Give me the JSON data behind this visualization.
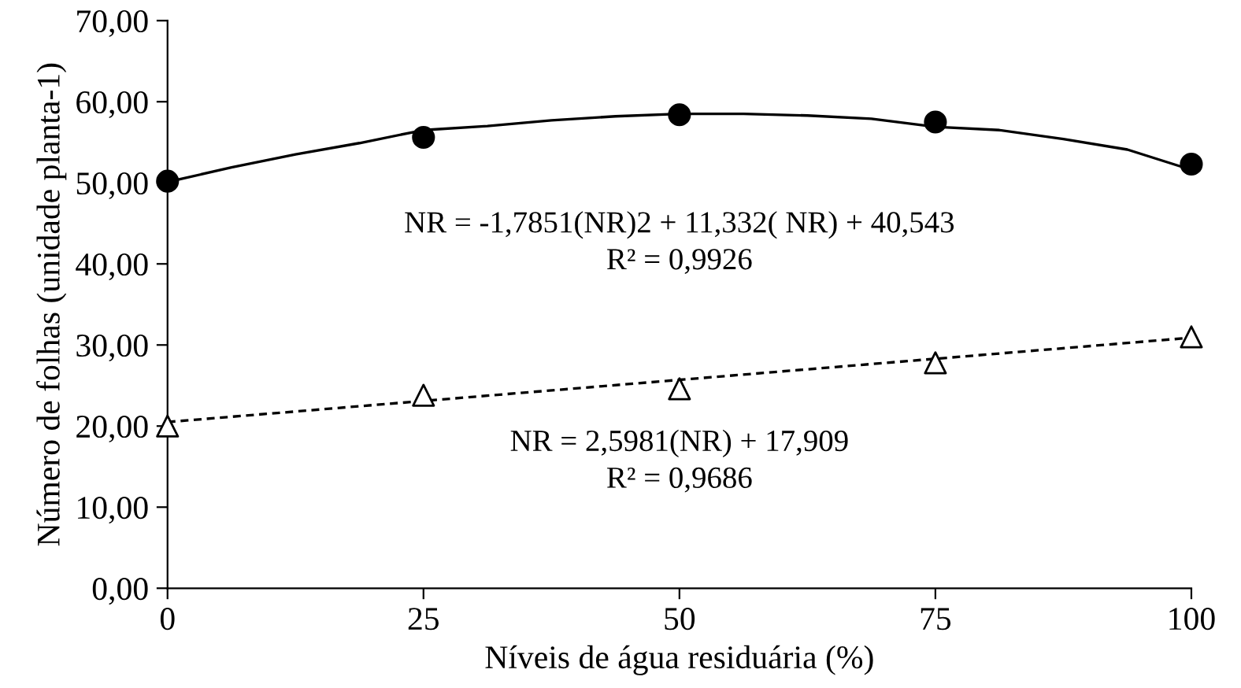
{
  "chart_data": {
    "type": "scatter",
    "xlabel": "Níveis de água residuária (%)",
    "ylabel": "Número de folhas (unidade planta-1)",
    "xlim": [
      0,
      100
    ],
    "xticks": [
      0,
      25,
      50,
      75,
      100
    ],
    "ylim": [
      0,
      70
    ],
    "yticks": [
      {
        "value": 0,
        "label": "0,00"
      },
      {
        "value": 10,
        "label": "10,00"
      },
      {
        "value": 20,
        "label": "20,00"
      },
      {
        "value": 30,
        "label": "30,00"
      },
      {
        "value": 40,
        "label": "40,00"
      },
      {
        "value": 50,
        "label": "50,00"
      },
      {
        "value": 60,
        "label": "60,00"
      },
      {
        "value": 70,
        "label": "70,00"
      }
    ],
    "grid": false,
    "legend": false,
    "series": [
      {
        "color": "#000000",
        "marker": "circle",
        "x": [
          0,
          25,
          50,
          75,
          100
        ],
        "values": [
          50.2,
          55.6,
          58.4,
          57.5,
          52.3
        ]
      },
      {
        "color": "#ffffff",
        "marker": "triangle",
        "x": [
          0,
          25,
          50,
          75,
          100
        ],
        "values": [
          20.0,
          23.8,
          24.6,
          27.8,
          31.0
        ]
      },
      {
        "type": "line",
        "color": "#000000",
        "line_style": "solid",
        "x": [
          0,
          6.25,
          12.5,
          18.75,
          25,
          31.25,
          37.5,
          43.75,
          50,
          56.25,
          62.5,
          68.75,
          75,
          81.25,
          87.5,
          93.75,
          100
        ],
        "values": [
          50.1,
          51.9,
          53.5,
          54.9,
          56.5,
          57.0,
          57.7,
          58.2,
          58.5,
          58.5,
          58.3,
          57.9,
          56.9,
          56.5,
          55.4,
          54.1,
          51.6
        ]
      },
      {
        "type": "line",
        "color": "#000000",
        "line_style": "dashed",
        "x": [
          0,
          100
        ],
        "values": [
          20.5,
          30.9
        ]
      }
    ],
    "annotations": [
      "NR = -1,7851(NR)2 + 11,332( NR) + 40,543",
      "R² = 0,9926",
      "NR = 2,5981(NR) + 17,909",
      "R² = 0,9686"
    ]
  }
}
